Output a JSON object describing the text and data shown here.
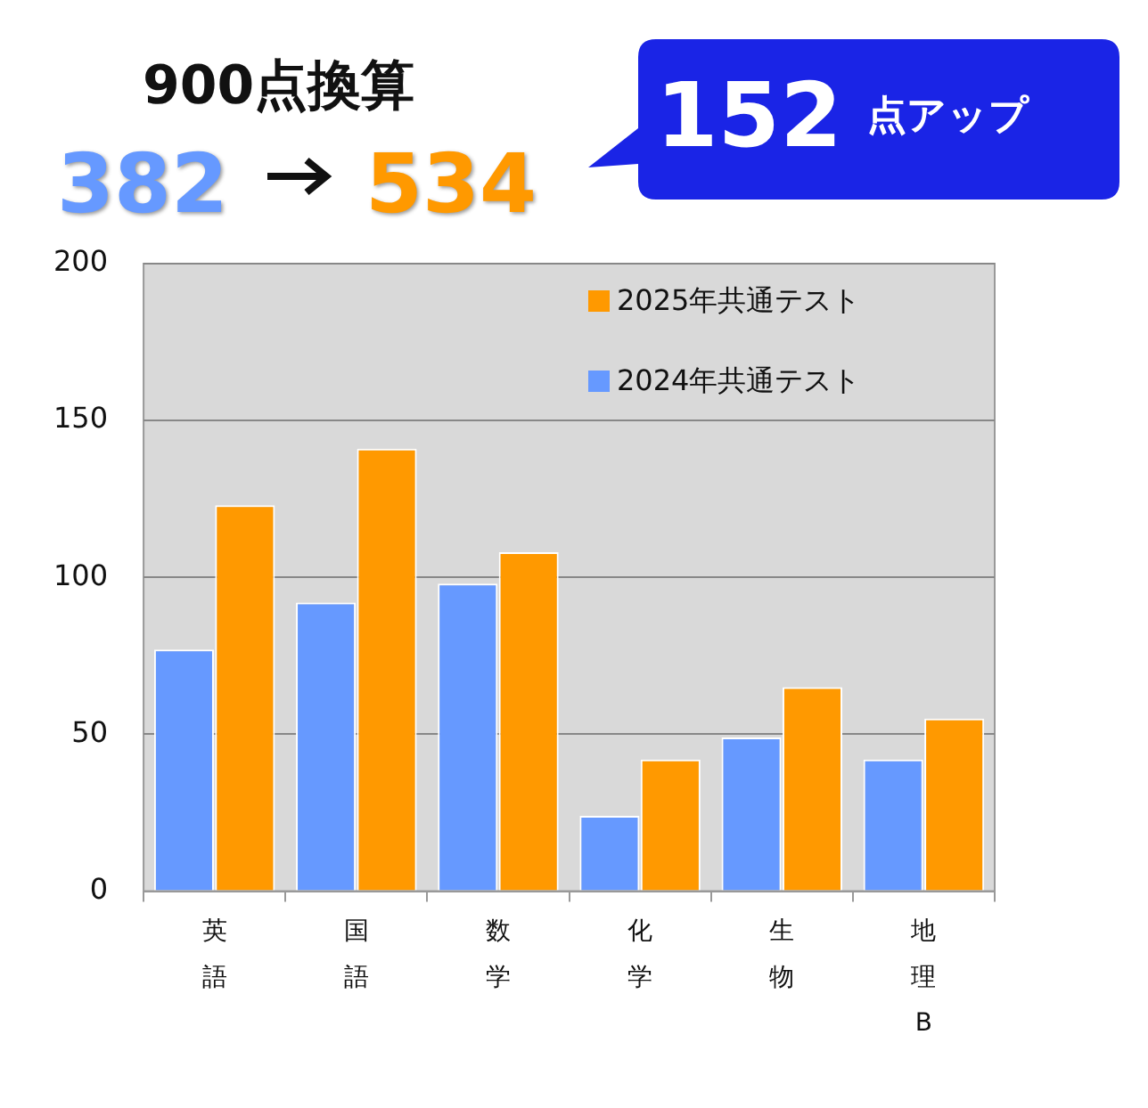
{
  "chart_data": {
    "type": "bar",
    "title": "900点換算",
    "annotations": [
      "382",
      "534",
      "152 点アップ"
    ],
    "categories": [
      "英語",
      "国語",
      "数学",
      "化学",
      "生物",
      "地理B"
    ],
    "series": [
      {
        "name": "2024年共通テスト",
        "color": "#6699ff",
        "values": [
          77,
          92,
          98,
          24,
          49,
          42
        ]
      },
      {
        "name": "2025年共通テスト",
        "color": "#ff9900",
        "values": [
          123,
          141,
          108,
          42,
          65,
          55
        ]
      }
    ],
    "ylim": [
      0,
      200
    ],
    "yticks": [
      0,
      50,
      100,
      150,
      200
    ],
    "grid": "y",
    "legend": "top right"
  }
}
